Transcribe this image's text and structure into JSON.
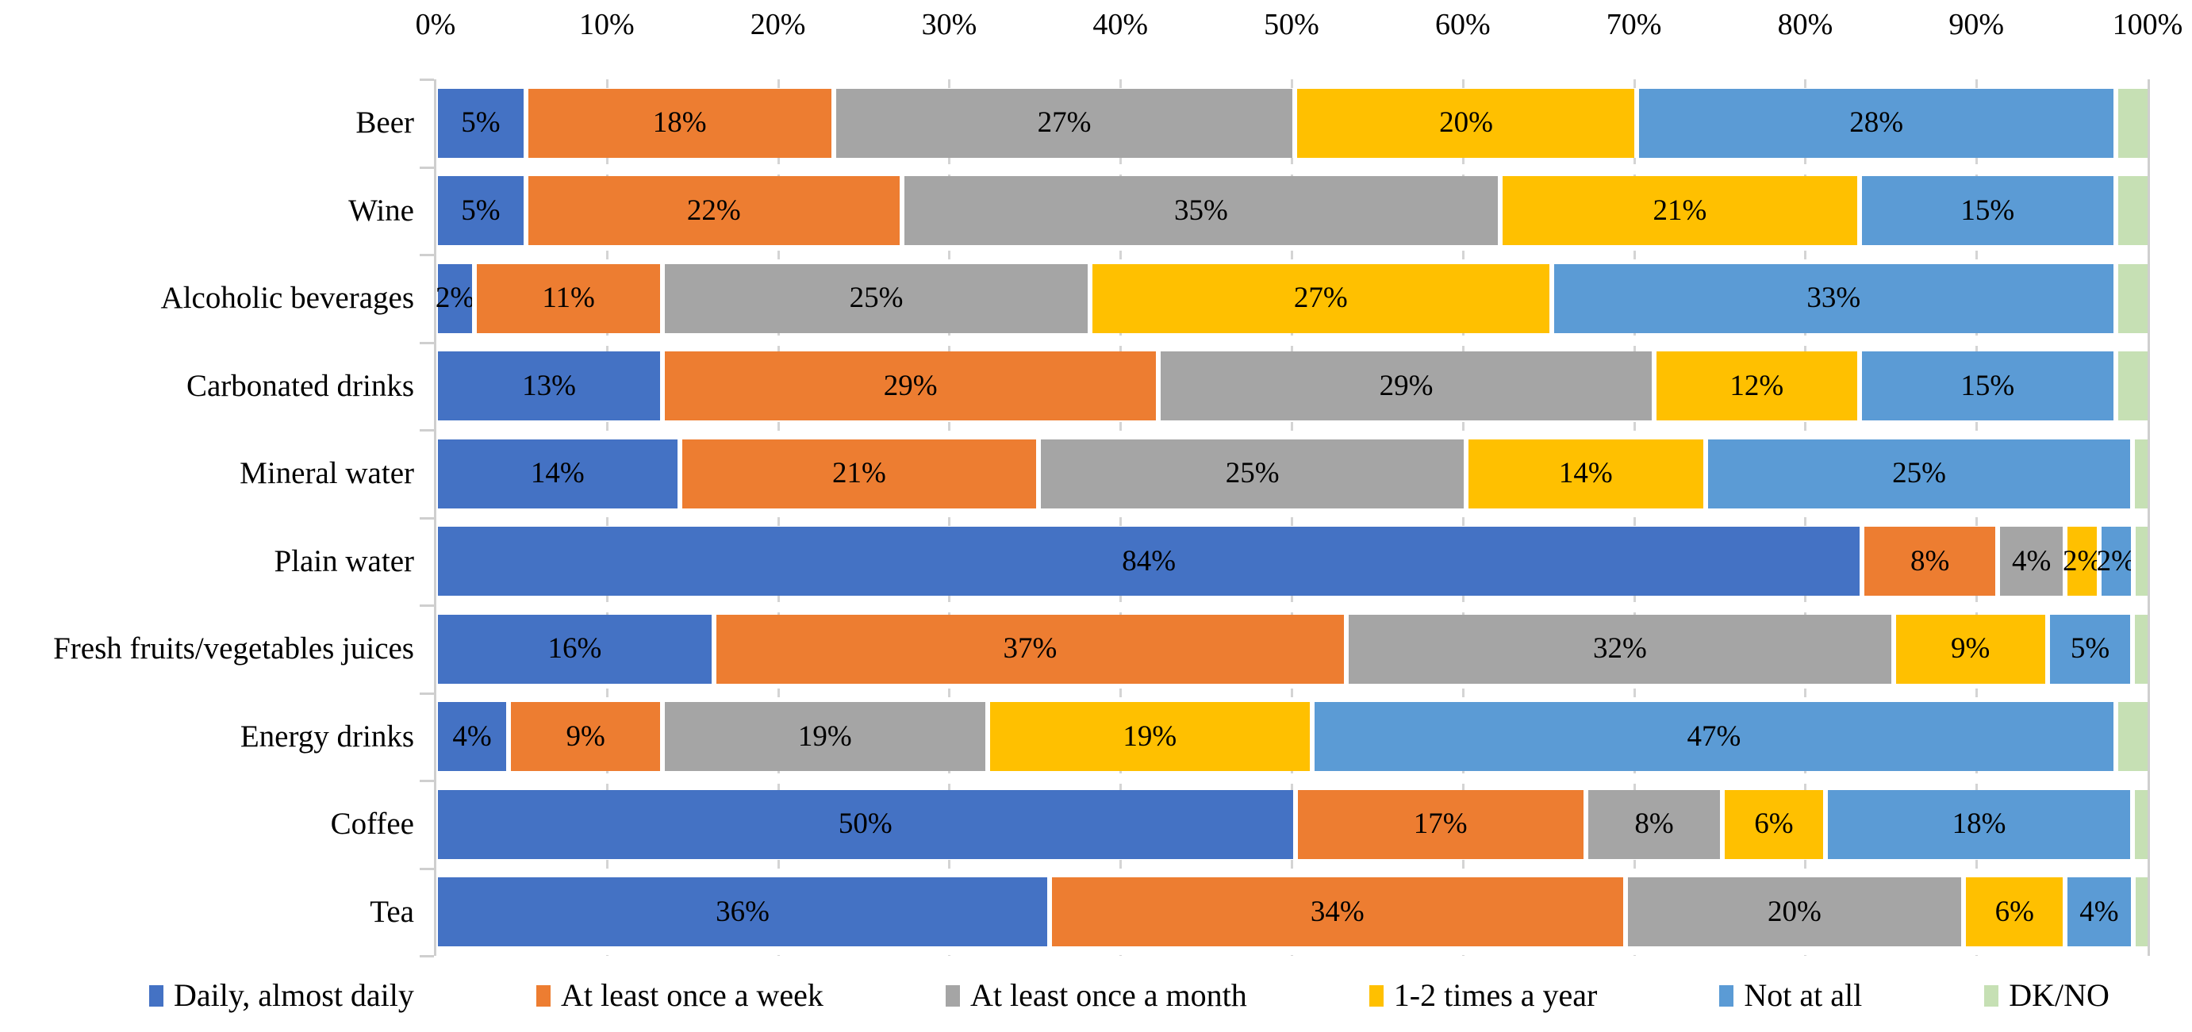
{
  "chart_data": {
    "type": "bar",
    "orientation": "horizontal",
    "stacked": true,
    "unit": "%",
    "title": "",
    "x_axis": {
      "min": 0,
      "max": 100,
      "tick_step": 10,
      "tick_labels": [
        "0%",
        "10%",
        "20%",
        "30%",
        "40%",
        "50%",
        "60%",
        "70%",
        "80%",
        "90%",
        "100%"
      ],
      "grid": "dashed-vertical",
      "position": "top"
    },
    "categories": [
      "Beer",
      "Wine",
      "Alcoholic beverages",
      "Carbonated drinks",
      "Mineral water",
      "Plain water",
      "Fresh fruits/vegetables juices",
      "Energy drinks",
      "Coffee",
      "Tea"
    ],
    "series": [
      {
        "name": "Daily, almost daily",
        "color": "#4472C4",
        "show_labels": true,
        "values": [
          5,
          5,
          2,
          13,
          14,
          84,
          16,
          4,
          50,
          36
        ]
      },
      {
        "name": "At least once a week",
        "color": "#ED7D31",
        "show_labels": true,
        "values": [
          18,
          22,
          11,
          29,
          21,
          8,
          37,
          9,
          17,
          34
        ]
      },
      {
        "name": "At least once a month",
        "color": "#A5A5A5",
        "show_labels": true,
        "values": [
          27,
          35,
          25,
          29,
          25,
          4,
          32,
          19,
          8,
          20
        ]
      },
      {
        "name": "1-2 times a year",
        "color": "#FFC000",
        "show_labels": true,
        "values": [
          20,
          21,
          27,
          12,
          14,
          2,
          9,
          19,
          6,
          6
        ]
      },
      {
        "name": "Not at all",
        "color": "#5B9BD5",
        "show_labels": true,
        "values": [
          28,
          15,
          33,
          15,
          25,
          2,
          5,
          47,
          18,
          4
        ]
      },
      {
        "name": "DK/NO",
        "color": "#C6E0B4",
        "show_labels": false,
        "values": [
          2,
          2,
          2,
          2,
          1,
          1,
          1,
          2,
          1,
          1
        ]
      }
    ],
    "data_label_format": "{value}%",
    "legend": {
      "position": "bottom",
      "items": [
        "Daily, almost daily",
        "At least once a week",
        "At least once a month",
        "1-2 times a year",
        "Not at all",
        "DK/NO"
      ]
    },
    "style": {
      "grid_color": "#D4D4D4",
      "axis_color": "#CFCFCF",
      "label_color": "#000000",
      "background": "#FFFFFF"
    }
  }
}
